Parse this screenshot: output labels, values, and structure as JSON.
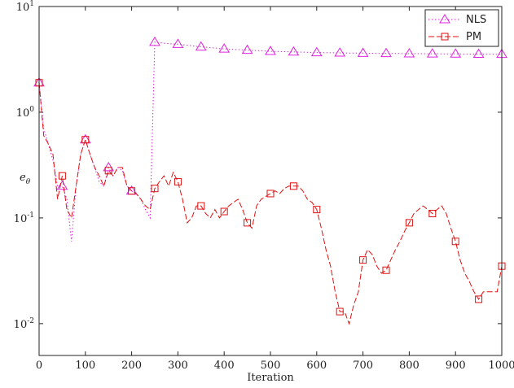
{
  "chart_data": {
    "type": "line",
    "xlabel": "Iteration",
    "ylabel": "e_θ",
    "log_y": true,
    "legend": "upper right",
    "marker_every": 50,
    "x": [
      0,
      10,
      20,
      30,
      40,
      50,
      60,
      70,
      80,
      90,
      100,
      110,
      120,
      130,
      140,
      150,
      160,
      170,
      180,
      190,
      200,
      210,
      220,
      230,
      240,
      250,
      260,
      270,
      280,
      290,
      300,
      310,
      320,
      330,
      340,
      350,
      360,
      370,
      380,
      390,
      400,
      410,
      420,
      430,
      440,
      450,
      460,
      470,
      480,
      490,
      500,
      510,
      520,
      530,
      540,
      550,
      560,
      570,
      580,
      590,
      600,
      610,
      620,
      630,
      640,
      650,
      660,
      670,
      680,
      690,
      700,
      710,
      720,
      730,
      740,
      750,
      760,
      770,
      780,
      790,
      800,
      810,
      820,
      830,
      840,
      850,
      860,
      870,
      880,
      890,
      900,
      910,
      920,
      930,
      940,
      950,
      960,
      970,
      980,
      990,
      1000
    ],
    "series": [
      {
        "name": "NLS",
        "color": "#e020e0",
        "dash": "dotted",
        "marker": "triangle",
        "values": [
          1.9,
          0.7,
          0.5,
          0.35,
          0.2,
          0.2,
          0.15,
          0.06,
          0.2,
          0.4,
          0.55,
          0.4,
          0.3,
          0.22,
          0.2,
          0.3,
          0.25,
          0.3,
          0.28,
          0.2,
          0.18,
          0.17,
          0.15,
          0.12,
          0.1,
          4.6,
          4.55,
          4.5,
          4.45,
          4.42,
          4.4,
          4.35,
          4.3,
          4.25,
          4.2,
          4.15,
          4.12,
          4.08,
          4.05,
          4.0,
          3.97,
          3.95,
          3.93,
          3.91,
          3.89,
          3.87,
          3.85,
          3.83,
          3.81,
          3.79,
          3.77,
          3.76,
          3.75,
          3.74,
          3.73,
          3.72,
          3.71,
          3.7,
          3.69,
          3.68,
          3.67,
          3.66,
          3.66,
          3.65,
          3.65,
          3.64,
          3.64,
          3.63,
          3.63,
          3.62,
          3.62,
          3.61,
          3.61,
          3.6,
          3.6,
          3.6,
          3.59,
          3.59,
          3.59,
          3.58,
          3.58,
          3.58,
          3.58,
          3.57,
          3.57,
          3.57,
          3.57,
          3.56,
          3.56,
          3.56,
          3.56,
          3.56,
          3.55,
          3.55,
          3.55,
          3.55,
          3.55,
          3.55,
          3.54,
          3.54,
          3.54
        ]
      },
      {
        "name": "PM",
        "color": "#e01010",
        "dash": "dashed",
        "marker": "square",
        "values": [
          1.9,
          0.6,
          0.5,
          0.4,
          0.15,
          0.25,
          0.12,
          0.1,
          0.2,
          0.4,
          0.55,
          0.4,
          0.3,
          0.25,
          0.2,
          0.28,
          0.25,
          0.3,
          0.3,
          0.2,
          0.18,
          0.17,
          0.15,
          0.13,
          0.12,
          0.19,
          0.22,
          0.25,
          0.2,
          0.27,
          0.22,
          0.15,
          0.09,
          0.1,
          0.13,
          0.13,
          0.11,
          0.1,
          0.12,
          0.1,
          0.115,
          0.13,
          0.14,
          0.15,
          0.12,
          0.09,
          0.08,
          0.13,
          0.15,
          0.16,
          0.17,
          0.18,
          0.17,
          0.19,
          0.2,
          0.2,
          0.2,
          0.18,
          0.15,
          0.14,
          0.12,
          0.08,
          0.05,
          0.035,
          0.02,
          0.013,
          0.013,
          0.01,
          0.015,
          0.02,
          0.04,
          0.05,
          0.045,
          0.035,
          0.03,
          0.032,
          0.04,
          0.05,
          0.06,
          0.075,
          0.09,
          0.11,
          0.12,
          0.13,
          0.12,
          0.11,
          0.12,
          0.13,
          0.11,
          0.08,
          0.06,
          0.04,
          0.03,
          0.025,
          0.02,
          0.017,
          0.02,
          0.02,
          0.02,
          0.02,
          0.035
        ]
      }
    ],
    "xlim": [
      0,
      1000
    ],
    "xticks": [
      0,
      100,
      200,
      300,
      400,
      500,
      600,
      700,
      800,
      900,
      1000
    ],
    "ylim": [
      0.005,
      10
    ],
    "yticks": [
      {
        "value": 0.01,
        "label": "10^-2"
      },
      {
        "value": 0.1,
        "label": "10^-1"
      },
      {
        "value": 1,
        "label": "10^0"
      },
      {
        "value": 10,
        "label": "10^1"
      }
    ]
  }
}
